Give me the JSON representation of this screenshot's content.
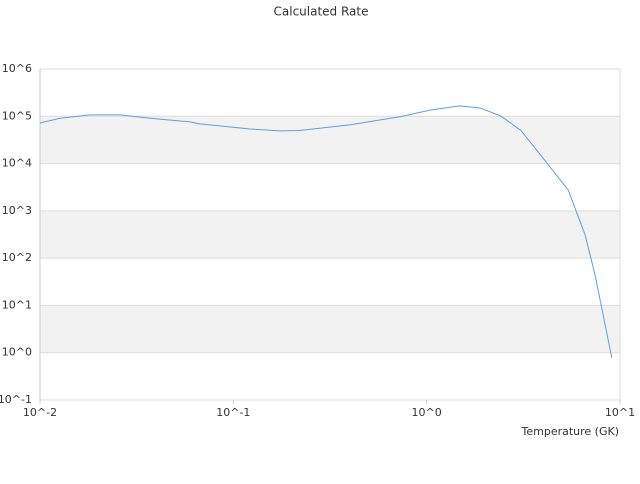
{
  "chart_data": {
    "type": "line",
    "title": "Calculated Rate",
    "x_label": "Temperature (GK)",
    "log_x": true,
    "log_y": true,
    "alternating_bands": true,
    "band_color": "#f2f2f2",
    "xlim": [
      0.01,
      10
    ],
    "ylim": [
      0.1,
      1000000
    ],
    "xticks": [
      {
        "value": 0.01,
        "label": "10^-2"
      },
      {
        "value": 0.1,
        "label": "10^-1"
      },
      {
        "value": 1,
        "label": "10^0"
      },
      {
        "value": 10,
        "label": "10^1"
      }
    ],
    "yticks": [
      {
        "value": 0.1,
        "label": "10^-1"
      },
      {
        "value": 1,
        "label": "10^0"
      },
      {
        "value": 10,
        "label": "10^1"
      },
      {
        "value": 100,
        "label": "10^2"
      },
      {
        "value": 1000,
        "label": "10^3"
      },
      {
        "value": 10000,
        "label": "10^4"
      },
      {
        "value": 100000,
        "label": "10^5"
      },
      {
        "value": 1000000,
        "label": "10^6"
      }
    ],
    "series": [
      {
        "color": "#5aa0e6",
        "x": [
          0.01,
          0.0127,
          0.0181,
          0.0259,
          0.0371,
          0.0596,
          0.0672,
          0.122,
          0.174,
          0.22,
          0.4,
          0.73,
          1.04,
          1.48,
          1.89,
          2.41,
          3.06,
          3.89,
          5.4,
          6.6,
          7.43,
          9.07
        ],
        "values": [
          72000,
          91000,
          107000,
          107000,
          91000,
          76000,
          69000,
          54000,
          49000,
          50000,
          66000,
          98000,
          135000,
          166000,
          150000,
          102000,
          51000,
          15000,
          2750,
          310,
          44,
          0.78
        ]
      }
    ]
  }
}
